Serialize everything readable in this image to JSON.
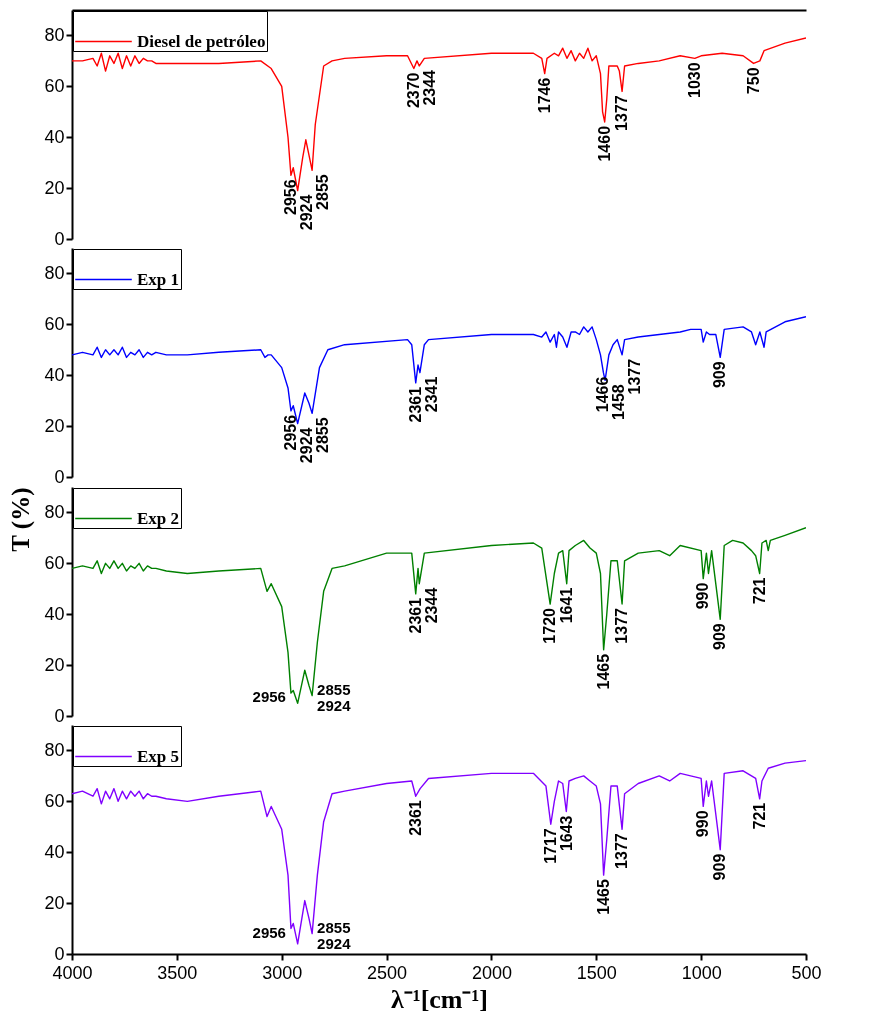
{
  "chart_data": [
    {
      "type": "line",
      "xlim": [
        4000,
        500
      ],
      "ylim": [
        0,
        90
      ],
      "yticks": [
        0,
        20,
        40,
        60,
        80
      ],
      "tick_labels": "y",
      "legend": "top left",
      "series": [
        {
          "name": "Diesel de petróleo",
          "color": "#ff0000",
          "x": [
            4000,
            3950,
            3900,
            3880,
            3860,
            3840,
            3820,
            3800,
            3780,
            3760,
            3740,
            3720,
            3700,
            3680,
            3660,
            3640,
            3620,
            3600,
            3550,
            3500,
            3300,
            3100,
            3050,
            3000,
            2970,
            2956,
            2945,
            2924,
            2900,
            2885,
            2870,
            2855,
            2840,
            2800,
            2760,
            2700,
            2500,
            2400,
            2370,
            2355,
            2344,
            2320,
            2000,
            1800,
            1760,
            1746,
            1735,
            1700,
            1680,
            1660,
            1640,
            1620,
            1600,
            1580,
            1560,
            1540,
            1520,
            1500,
            1480,
            1470,
            1460,
            1450,
            1440,
            1400,
            1390,
            1377,
            1365,
            1300,
            1200,
            1100,
            1030,
            1000,
            900,
            800,
            750,
            720,
            700,
            600,
            500
          ],
          "values": [
            70,
            70,
            71,
            68,
            73,
            66,
            72,
            69,
            73,
            67,
            72,
            68,
            72,
            69,
            71,
            70,
            70,
            69,
            69,
            69,
            69,
            70,
            67,
            60,
            40,
            25,
            28,
            19,
            32,
            39,
            33,
            27,
            45,
            68,
            70,
            71,
            72,
            72,
            67,
            70,
            68,
            71,
            73,
            73,
            71,
            65,
            71,
            73,
            72,
            75,
            71,
            74,
            70,
            73,
            71,
            75,
            70,
            72,
            65,
            50,
            46,
            55,
            68,
            68,
            66,
            58,
            68,
            69,
            70,
            72,
            71,
            72,
            73,
            72,
            69,
            70,
            74,
            77,
            79
          ]
        }
      ],
      "annotations": [
        {
          "text": "2956",
          "x": 2956,
          "y": 25
        },
        {
          "text": "2924",
          "x": 2924,
          "y": 19
        },
        {
          "text": "2855",
          "x": 2855,
          "y": 27
        },
        {
          "text": "2370",
          "x": 2370,
          "y": 67
        },
        {
          "text": "2344",
          "x": 2344,
          "y": 68
        },
        {
          "text": "1746",
          "x": 1746,
          "y": 65
        },
        {
          "text": "1460",
          "x": 1460,
          "y": 46
        },
        {
          "text": "1377",
          "x": 1377,
          "y": 58
        },
        {
          "text": "1030",
          "x": 1030,
          "y": 71
        },
        {
          "text": "750",
          "x": 750,
          "y": 69
        }
      ]
    },
    {
      "type": "line",
      "xlim": [
        4000,
        500
      ],
      "ylim": [
        0,
        90
      ],
      "yticks": [
        0,
        20,
        40,
        60,
        80
      ],
      "tick_labels": "y",
      "legend": "top left",
      "series": [
        {
          "name": "Exp 1",
          "color": "#0000ff",
          "x": [
            4000,
            3950,
            3900,
            3880,
            3860,
            3840,
            3820,
            3800,
            3780,
            3760,
            3740,
            3720,
            3700,
            3680,
            3660,
            3640,
            3620,
            3600,
            3550,
            3450,
            3300,
            3100,
            3080,
            3065,
            3050,
            3000,
            2970,
            2956,
            2945,
            2924,
            2890,
            2870,
            2855,
            2820,
            2780,
            2700,
            2400,
            2380,
            2361,
            2350,
            2341,
            2320,
            2300,
            2000,
            1800,
            1760,
            1740,
            1720,
            1700,
            1690,
            1680,
            1660,
            1640,
            1620,
            1600,
            1580,
            1560,
            1540,
            1520,
            1500,
            1480,
            1466,
            1458,
            1440,
            1420,
            1400,
            1377,
            1365,
            1300,
            1200,
            1100,
            1050,
            1000,
            990,
            975,
            960,
            930,
            909,
            890,
            800,
            760,
            740,
            720,
            700,
            690,
            600,
            500
          ],
          "values": [
            48,
            49,
            48,
            51,
            47,
            50,
            48,
            50,
            48,
            51,
            47,
            49,
            48,
            50,
            47,
            49,
            48,
            49,
            48,
            48,
            49,
            50,
            47,
            48,
            48,
            43,
            35,
            26,
            28,
            21,
            33,
            29,
            25,
            43,
            50,
            52,
            54,
            52,
            37,
            44,
            41,
            52,
            54,
            56,
            56,
            55,
            57,
            53,
            56,
            51,
            57,
            55,
            51,
            57,
            57,
            56,
            59,
            57,
            59,
            54,
            48,
            41,
            38,
            48,
            52,
            54,
            48,
            54,
            55,
            56,
            57,
            58,
            58,
            53,
            57,
            56,
            56,
            47,
            58,
            59,
            57,
            52,
            57,
            51,
            57,
            61,
            63
          ]
        }
      ],
      "annotations": [
        {
          "text": "2956",
          "x": 2956,
          "y": 26
        },
        {
          "text": "2924",
          "x": 2924,
          "y": 21
        },
        {
          "text": "2855",
          "x": 2855,
          "y": 25
        },
        {
          "text": "2361",
          "x": 2361,
          "y": 37
        },
        {
          "text": "2341",
          "x": 2341,
          "y": 41
        },
        {
          "text": "1466",
          "x": 1466,
          "y": 41
        },
        {
          "text": "1458",
          "x": 1458,
          "y": 38
        },
        {
          "text": "1377",
          "x": 1377,
          "y": 48
        },
        {
          "text": "909",
          "x": 909,
          "y": 47
        }
      ]
    },
    {
      "type": "line",
      "xlim": [
        4000,
        500
      ],
      "ylim": [
        0,
        90
      ],
      "yticks": [
        0,
        20,
        40,
        60,
        80
      ],
      "tick_labels": "y",
      "legend": "top left",
      "ylabel": "T (%)",
      "series": [
        {
          "name": "Exp 2",
          "color": "#008000",
          "x": [
            4000,
            3950,
            3900,
            3880,
            3860,
            3840,
            3820,
            3800,
            3780,
            3760,
            3740,
            3720,
            3700,
            3680,
            3660,
            3640,
            3620,
            3600,
            3550,
            3450,
            3300,
            3100,
            3070,
            3050,
            3000,
            2970,
            2956,
            2945,
            2924,
            2890,
            2870,
            2855,
            2830,
            2800,
            2760,
            2700,
            2500,
            2380,
            2361,
            2350,
            2344,
            2320,
            2000,
            1800,
            1760,
            1720,
            1700,
            1680,
            1660,
            1641,
            1630,
            1600,
            1560,
            1530,
            1500,
            1480,
            1465,
            1450,
            1430,
            1400,
            1377,
            1365,
            1300,
            1200,
            1150,
            1100,
            1000,
            990,
            975,
            965,
            950,
            909,
            890,
            850,
            800,
            760,
            740,
            721,
            710,
            690,
            680,
            670,
            600,
            500
          ],
          "values": [
            58,
            59,
            58,
            61,
            56,
            60,
            58,
            61,
            58,
            60,
            57,
            59,
            58,
            60,
            57,
            59,
            58,
            58,
            57,
            56,
            57,
            58,
            49,
            52,
            43,
            25,
            9,
            10,
            5,
            18,
            12,
            8,
            29,
            49,
            58,
            59,
            64,
            64,
            48,
            58,
            52,
            64,
            67,
            68,
            66,
            44,
            56,
            64,
            65,
            52,
            65,
            67,
            69,
            66,
            64,
            56,
            26,
            40,
            61,
            61,
            44,
            61,
            64,
            65,
            63,
            67,
            65,
            54,
            64,
            56,
            65,
            38,
            67,
            69,
            68,
            65,
            63,
            56,
            68,
            69,
            65,
            69,
            71,
            74
          ]
        }
      ],
      "annotations": [
        {
          "text": "2956",
          "x": 2956,
          "y": 9
        },
        {
          "text": "2924",
          "x": 2924,
          "y": 5
        },
        {
          "text": "2855",
          "x": 2855,
          "y": 8
        },
        {
          "text": "2361",
          "x": 2361,
          "y": 48
        },
        {
          "text": "2344",
          "x": 2344,
          "y": 52
        },
        {
          "text": "1720",
          "x": 1720,
          "y": 44
        },
        {
          "text": "1641",
          "x": 1641,
          "y": 52
        },
        {
          "text": "1465",
          "x": 1465,
          "y": 26
        },
        {
          "text": "1377",
          "x": 1377,
          "y": 44
        },
        {
          "text": "990",
          "x": 990,
          "y": 54
        },
        {
          "text": "909",
          "x": 909,
          "y": 38
        },
        {
          "text": "721",
          "x": 721,
          "y": 56
        }
      ]
    },
    {
      "type": "line",
      "xlim": [
        4000,
        500
      ],
      "ylim": [
        0,
        90
      ],
      "xticks": [
        4000,
        3500,
        3000,
        2500,
        2000,
        1500,
        1000,
        500
      ],
      "yticks": [
        0,
        20,
        40,
        60,
        80
      ],
      "legend": "top left",
      "xlabel": "λ⁻¹[cm⁻¹]",
      "series": [
        {
          "name": "Exp 5",
          "color": "#8000ff",
          "x": [
            4000,
            3950,
            3900,
            3880,
            3860,
            3840,
            3820,
            3800,
            3780,
            3760,
            3740,
            3720,
            3700,
            3680,
            3660,
            3640,
            3620,
            3600,
            3550,
            3450,
            3300,
            3100,
            3070,
            3050,
            3000,
            2970,
            2956,
            2945,
            2924,
            2890,
            2870,
            2855,
            2830,
            2800,
            2760,
            2700,
            2500,
            2380,
            2361,
            2340,
            2300,
            2000,
            1800,
            1740,
            1717,
            1700,
            1680,
            1660,
            1643,
            1630,
            1600,
            1560,
            1530,
            1500,
            1480,
            1465,
            1450,
            1430,
            1400,
            1377,
            1365,
            1300,
            1200,
            1150,
            1100,
            1000,
            990,
            975,
            965,
            950,
            909,
            890,
            800,
            760,
            740,
            721,
            710,
            680,
            600,
            500
          ],
          "values": [
            63,
            64,
            62,
            65,
            59,
            64,
            61,
            65,
            60,
            64,
            61,
            64,
            62,
            64,
            61,
            63,
            62,
            62,
            61,
            60,
            62,
            64,
            54,
            58,
            49,
            31,
            10,
            12,
            4,
            21,
            14,
            8,
            31,
            52,
            63,
            64,
            67,
            68,
            62,
            65,
            69,
            71,
            71,
            66,
            51,
            60,
            68,
            67,
            56,
            68,
            69,
            70,
            68,
            66,
            59,
            31,
            45,
            66,
            66,
            49,
            63,
            67,
            70,
            68,
            71,
            69,
            58,
            68,
            62,
            68,
            41,
            71,
            72,
            70,
            69,
            61,
            68,
            73,
            75,
            76
          ]
        }
      ],
      "annotations": [
        {
          "text": "2956",
          "x": 2956,
          "y": 10
        },
        {
          "text": "2924",
          "x": 2924,
          "y": 4
        },
        {
          "text": "2855",
          "x": 2855,
          "y": 8
        },
        {
          "text": "2361",
          "x": 2361,
          "y": 62
        },
        {
          "text": "1717",
          "x": 1717,
          "y": 51
        },
        {
          "text": "1643",
          "x": 1643,
          "y": 56
        },
        {
          "text": "1465",
          "x": 1465,
          "y": 31
        },
        {
          "text": "1377",
          "x": 1377,
          "y": 49
        },
        {
          "text": "990",
          "x": 990,
          "y": 58
        },
        {
          "text": "909",
          "x": 909,
          "y": 41
        },
        {
          "text": "721",
          "x": 721,
          "y": 61
        }
      ]
    }
  ]
}
